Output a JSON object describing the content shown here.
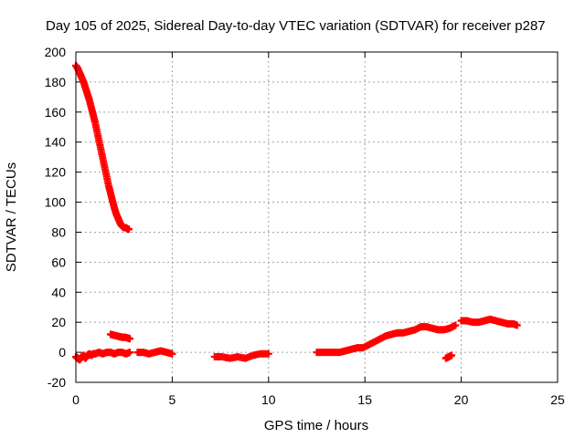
{
  "chart_data": {
    "type": "scatter",
    "title": "Day 105 of 2025, Sidereal Day-to-day VTEC variation (SDTVAR) for receiver p287",
    "xlabel": "GPS time / hours",
    "ylabel": "SDTVAR / TECUs",
    "xlim": [
      0,
      25
    ],
    "ylim": [
      -20,
      200
    ],
    "xticks": [
      0,
      5,
      10,
      15,
      20,
      25
    ],
    "xtick_labels": [
      "0",
      "5",
      "10",
      "15",
      "20",
      "25"
    ],
    "yticks": [
      -20,
      0,
      20,
      40,
      60,
      80,
      100,
      120,
      140,
      160,
      180,
      200
    ],
    "ytick_labels": [
      "-20",
      "0",
      "20",
      "40",
      "60",
      "80",
      "100",
      "120",
      "140",
      "160",
      "180",
      "200"
    ],
    "grid": true,
    "marker": "+",
    "series": [
      {
        "name": "SDTVAR",
        "color": "#ff0000",
        "segments": [
          {
            "x": [
              0.0,
              0.1,
              0.2,
              0.3,
              0.4,
              0.5,
              0.6,
              0.7,
              0.8,
              0.9,
              1.0,
              1.1,
              1.2,
              1.3,
              1.4,
              1.5,
              1.6,
              1.7,
              1.8,
              1.9,
              2.0,
              2.1,
              2.2,
              2.3,
              2.4,
              2.5,
              2.6,
              2.7,
              2.75
            ],
            "y": [
              191,
              189,
              186,
              183,
              180,
              176,
              172,
              168,
              163,
              158,
              153,
              147,
              141,
              135,
              129,
              123,
              117,
              111,
              106,
              101,
              96,
              92,
              89,
              86,
              84,
              83,
              83,
              82,
              82
            ]
          },
          {
            "x": [
              0.0,
              0.1,
              0.2,
              0.3,
              0.4,
              0.5,
              0.6,
              0.7,
              0.8,
              0.9,
              1.0,
              1.2,
              1.4,
              1.6,
              1.8,
              2.0,
              2.2,
              2.4,
              2.6,
              2.8
            ],
            "y": [
              -3,
              -4,
              -5,
              -3,
              -2,
              -4,
              -2,
              -1,
              -2,
              -1,
              -1,
              0,
              -1,
              0,
              0,
              -1,
              0,
              0,
              -1,
              0
            ]
          },
          {
            "x": [
              1.8,
              1.95,
              2.1,
              2.25,
              2.4,
              2.55,
              2.7,
              2.8
            ],
            "y": [
              12,
              11.5,
              11,
              10.5,
              10,
              10,
              9.5,
              9
            ]
          },
          {
            "x": [
              3.2,
              3.5,
              3.8,
              4.1,
              4.4,
              4.7,
              5.0
            ],
            "y": [
              0,
              0,
              -1,
              0,
              1,
              0,
              -1
            ]
          },
          {
            "x": [
              7.2,
              7.6,
              8.0,
              8.4,
              8.8,
              9.2,
              9.6,
              10.0
            ],
            "y": [
              -3,
              -3,
              -4,
              -3,
              -4,
              -2,
              -1,
              -1
            ]
          },
          {
            "x": [
              12.5,
              12.8,
              13.1,
              13.4,
              13.7,
              14.0,
              14.3,
              14.6,
              14.9,
              15.2,
              15.5,
              15.8,
              16.1,
              16.4,
              16.7,
              17.0,
              17.3,
              17.6,
              17.9,
              18.2,
              18.5,
              18.8,
              19.1,
              19.4,
              19.7
            ],
            "y": [
              0,
              0,
              0,
              0,
              0,
              1,
              2,
              3,
              3,
              5,
              7,
              9,
              11,
              12,
              13,
              13,
              14,
              15,
              17,
              17,
              16,
              15,
              15,
              16,
              18
            ]
          },
          {
            "x": [
              19.2,
              19.35,
              19.5
            ],
            "y": [
              -4,
              -3,
              -2
            ]
          },
          {
            "x": [
              20.0,
              20.3,
              20.6,
              20.9,
              21.2,
              21.5,
              21.8,
              22.1,
              22.4,
              22.7,
              22.9
            ],
            "y": [
              21,
              21,
              20,
              20,
              21,
              22,
              21,
              20,
              19,
              19,
              18
            ]
          }
        ]
      }
    ]
  }
}
